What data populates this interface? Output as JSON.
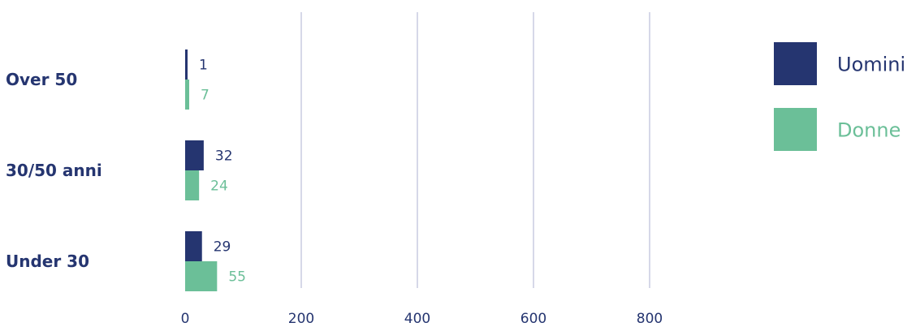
{
  "chart_data": {
    "type": "bar",
    "orientation": "horizontal",
    "categories": [
      "Over 50",
      "30/50 anni",
      "Under 30"
    ],
    "series": [
      {
        "name": "Uomini",
        "values": [
          1,
          32,
          29
        ],
        "color": "#253570"
      },
      {
        "name": "Donne",
        "values": [
          7,
          24,
          55
        ],
        "color": "#6bbf98"
      }
    ],
    "xlim": [
      0,
      800
    ],
    "xticks": [
      0,
      200,
      400,
      600,
      800
    ],
    "grid": true,
    "grid_color": "#c9cce0",
    "category_label_color": "#253570",
    "legend_position": "right"
  }
}
